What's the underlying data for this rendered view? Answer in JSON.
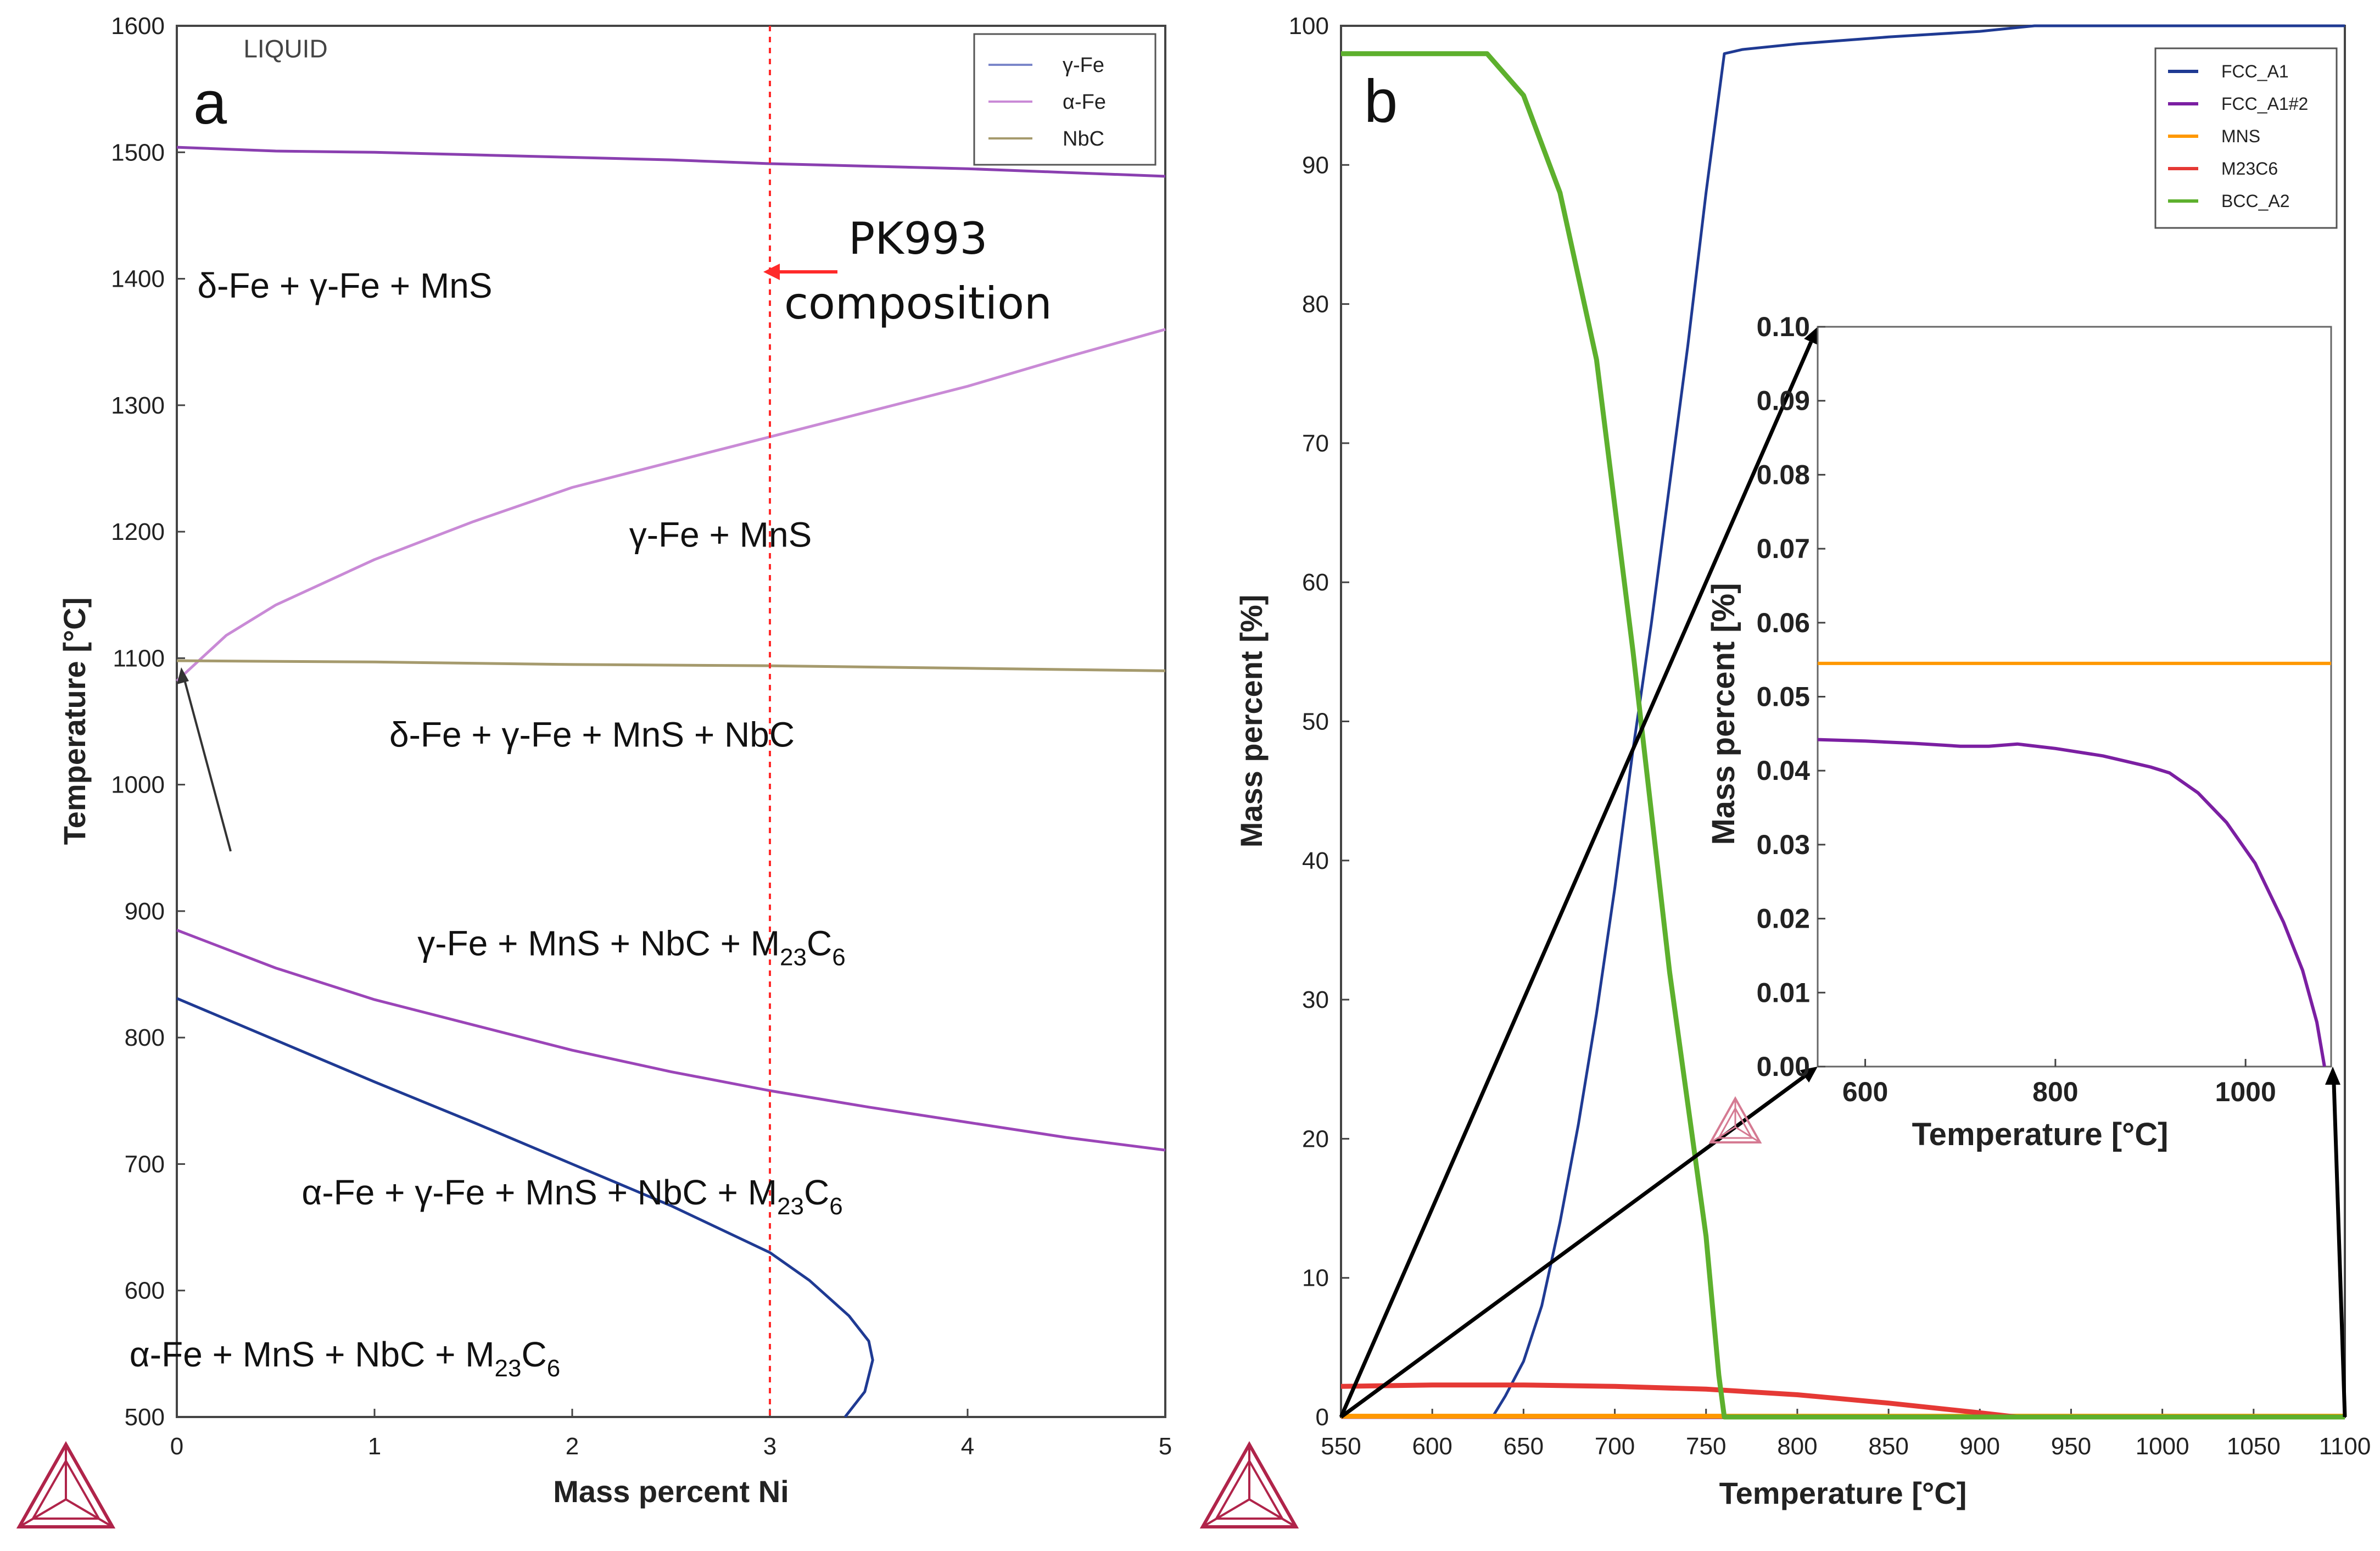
{
  "chart_data": [
    {
      "type": "line",
      "panel": "a",
      "title": "",
      "xlabel": "Mass percent Ni",
      "ylabel": "Temperature [°C]",
      "xlim": [
        0,
        5
      ],
      "ylim": [
        500,
        1600
      ],
      "x_ticks": [
        "0",
        "1",
        "2",
        "3",
        "4",
        "5"
      ],
      "y_ticks": [
        "500",
        "600",
        "700",
        "800",
        "900",
        "1000",
        "1100",
        "1200",
        "1300",
        "1400",
        "1500",
        "1600"
      ],
      "legend": [
        "γ-Fe",
        "α-Fe",
        "NbC"
      ],
      "legend_colors": [
        "#7b86c9",
        "#c98ad6",
        "#a59a6d"
      ],
      "series": [
        {
          "name": "solidus-top",
          "color": "#8a3fb0",
          "x": [
            0,
            0.5,
            1,
            1.5,
            2,
            2.5,
            3,
            3.5,
            4,
            4.5,
            5
          ],
          "y": [
            1504,
            1501,
            1500,
            1498,
            1496,
            1494,
            1491,
            1489,
            1487,
            1484,
            1481
          ]
        },
        {
          "name": "delta-gamma-boundary",
          "color": "#c98ad6",
          "x": [
            0,
            0.25,
            0.5,
            1,
            1.5,
            2,
            2.5,
            3,
            3.5,
            4,
            4.5,
            5
          ],
          "y": [
            1082,
            1118,
            1142,
            1178,
            1208,
            1235,
            1255,
            1275,
            1295,
            1315,
            1338,
            1360
          ]
        },
        {
          "name": "NbC",
          "color": "#a59a6d",
          "x": [
            0,
            1,
            2,
            3,
            4,
            5
          ],
          "y": [
            1098,
            1097,
            1095,
            1094,
            1092,
            1090
          ]
        },
        {
          "name": "M23C6-line",
          "color": "#9b45b8",
          "x": [
            0,
            0.5,
            1,
            1.5,
            2,
            2.5,
            3,
            3.5,
            4,
            4.5,
            5
          ],
          "y": [
            885,
            855,
            830,
            810,
            790,
            773,
            758,
            745,
            733,
            721,
            711
          ]
        },
        {
          "name": "alpha-Fe-line",
          "color": "#1f3a93",
          "x": [
            0,
            0.5,
            1,
            1.5,
            2,
            2.5,
            3,
            3.2,
            3.4,
            3.5,
            3.52,
            3.48,
            3.38
          ],
          "y": [
            831,
            798,
            765,
            733,
            700,
            667,
            630,
            608,
            580,
            560,
            545,
            520,
            500
          ]
        }
      ],
      "reference_line": {
        "x": 3,
        "color": "#ff2a2a",
        "label": "PK993 composition",
        "label_lines": [
          "PK993",
          "composition"
        ]
      },
      "region_labels": [
        {
          "text": "LIQUID",
          "x": 0.55,
          "y": 1575
        },
        {
          "text": "δ-Fe + γ-Fe + MnS",
          "x": 0.85,
          "y": 1385
        },
        {
          "text": "γ-Fe + MnS",
          "x": 2.75,
          "y": 1188
        },
        {
          "text": "δ-Fe + γ-Fe + MnS + NbC",
          "x": 2.1,
          "y": 1030
        },
        {
          "base": "γ-Fe + MnS + NbC + M",
          "sub1": "23",
          "mid": "C",
          "sub2": "6",
          "x": 2.3,
          "y": 865
        },
        {
          "base": "α-Fe + γ-Fe + MnS + NbC + M",
          "sub1": "23",
          "mid": "C",
          "sub2": "6",
          "x": 2.0,
          "y": 668
        },
        {
          "base": "α-Fe + MnS + NbC + M",
          "sub1": "23",
          "mid": "C",
          "sub2": "6",
          "x": 0.85,
          "y": 540
        }
      ]
    },
    {
      "type": "line",
      "panel": "b",
      "title": "",
      "xlabel": "Temperature [°C]",
      "ylabel": "Mass percent [%]",
      "xlim": [
        550,
        1100
      ],
      "ylim": [
        0,
        100
      ],
      "x_ticks": [
        "550",
        "600",
        "650",
        "700",
        "750",
        "800",
        "850",
        "900",
        "950",
        "1000",
        "1050",
        "1100"
      ],
      "y_ticks": [
        "0",
        "10",
        "20",
        "30",
        "40",
        "50",
        "60",
        "70",
        "80",
        "90",
        "100"
      ],
      "series": [
        {
          "name": "FCC_A1",
          "color": "#1f3a93",
          "x": [
            550,
            633,
            640,
            650,
            660,
            670,
            680,
            690,
            700,
            710,
            720,
            730,
            740,
            750,
            760,
            770,
            800,
            850,
            900,
            930,
            1000,
            1100
          ],
          "y": [
            0,
            0,
            1.5,
            4,
            8,
            14,
            21,
            29,
            38,
            48,
            57,
            67,
            77,
            88,
            98,
            98.3,
            98.7,
            99.2,
            99.6,
            100,
            100,
            100
          ]
        },
        {
          "name": "FCC_A1#2",
          "color": "#7b1fa2",
          "x": [
            550,
            1100
          ],
          "y": [
            0.04,
            0
          ]
        },
        {
          "name": "MNS",
          "color": "#ff9800",
          "x": [
            550,
            1100
          ],
          "y": [
            0.054,
            0.054
          ]
        },
        {
          "name": "M23C6",
          "color": "#e53935",
          "x": [
            550,
            600,
            650,
            700,
            750,
            800,
            850,
            900,
            920,
            1100
          ],
          "y": [
            2.2,
            2.3,
            2.3,
            2.2,
            2.0,
            1.6,
            1.0,
            0.3,
            0,
            0
          ]
        },
        {
          "name": "BCC_A2",
          "color": "#5db02d",
          "x": [
            550,
            580,
            600,
            630,
            650,
            670,
            690,
            710,
            730,
            750,
            757,
            760,
            1100
          ],
          "y": [
            98,
            98,
            98,
            98,
            95,
            88,
            76,
            55,
            32,
            13,
            3,
            0,
            0
          ]
        }
      ],
      "legend": [
        "FCC_A1",
        "FCC_A1#2",
        "MNS",
        "M23C6",
        "BCC_A2"
      ],
      "inset": {
        "xlabel": "Temperature [°C]",
        "ylabel": "Mass percent [%]",
        "xlim": [
          550,
          1090
        ],
        "ylim": [
          0,
          0.1
        ],
        "x_ticks": [
          "600",
          "800",
          "1000"
        ],
        "y_ticks": [
          "0.00",
          "0.01",
          "0.02",
          "0.03",
          "0.04",
          "0.05",
          "0.06",
          "0.07",
          "0.08",
          "0.09",
          "0.10"
        ],
        "series": [
          {
            "name": "MNS",
            "color": "#ff9800",
            "x": [
              550,
              700,
              800,
              900,
              1000,
              1090
            ],
            "y": [
              0.0545,
              0.0545,
              0.0545,
              0.0545,
              0.0545,
              0.0545
            ]
          },
          {
            "name": "FCC_A1#2",
            "color": "#7b1fa2",
            "x": [
              550,
              600,
              650,
              700,
              730,
              760,
              800,
              850,
              900,
              920,
              950,
              980,
              1010,
              1040,
              1060,
              1075,
              1083
            ],
            "y": [
              0.0442,
              0.044,
              0.0437,
              0.0433,
              0.0433,
              0.0436,
              0.043,
              0.042,
              0.0405,
              0.0397,
              0.037,
              0.033,
              0.0275,
              0.0195,
              0.013,
              0.006,
              0
            ]
          }
        ]
      }
    }
  ]
}
